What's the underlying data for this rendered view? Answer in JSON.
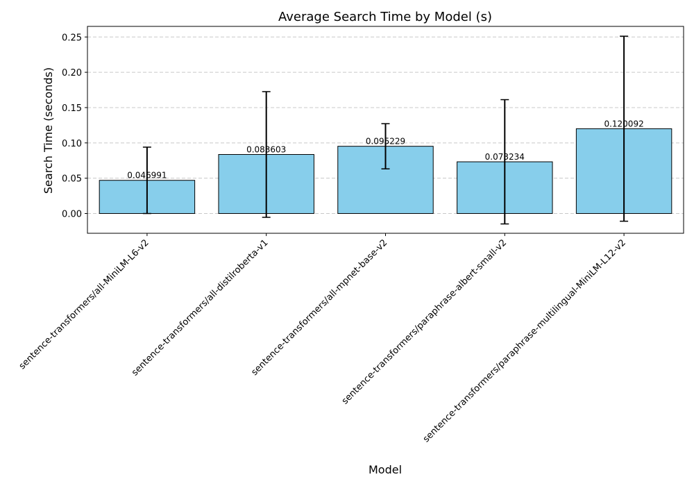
{
  "chart_data": {
    "type": "bar",
    "title": "Average Search Time by Model (s)",
    "xlabel": "Model",
    "ylabel": "Search Time (seconds)",
    "categories": [
      "sentence-transformers/all-MiniLM-L6-v2",
      "sentence-transformers/all-distilroberta-v1",
      "sentence-transformers/all-mpnet-base-v2",
      "sentence-transformers/paraphrase-albert-small-v2",
      "sentence-transformers/paraphrase-multilingual-MiniLM-L12-v2"
    ],
    "values": [
      0.046991,
      0.083603,
      0.095229,
      0.073234,
      0.120092
    ],
    "value_labels": [
      "0.046991",
      "0.083603",
      "0.095229",
      "0.073234",
      "0.120092"
    ],
    "errors": [
      0.047,
      0.089,
      0.032,
      0.088,
      0.131
    ],
    "ylim": [
      -0.028,
      0.265
    ],
    "yticks": [
      0.0,
      0.05,
      0.1,
      0.15,
      0.2,
      0.25
    ],
    "ytick_labels": [
      "0.00",
      "0.05",
      "0.10",
      "0.15",
      "0.20",
      "0.25"
    ],
    "grid": "y-dashed",
    "colors": {
      "bar_fill": "#87CEEB",
      "bar_edge": "#000000",
      "error_bar": "#000000",
      "grid": "#c8c8c8"
    }
  }
}
